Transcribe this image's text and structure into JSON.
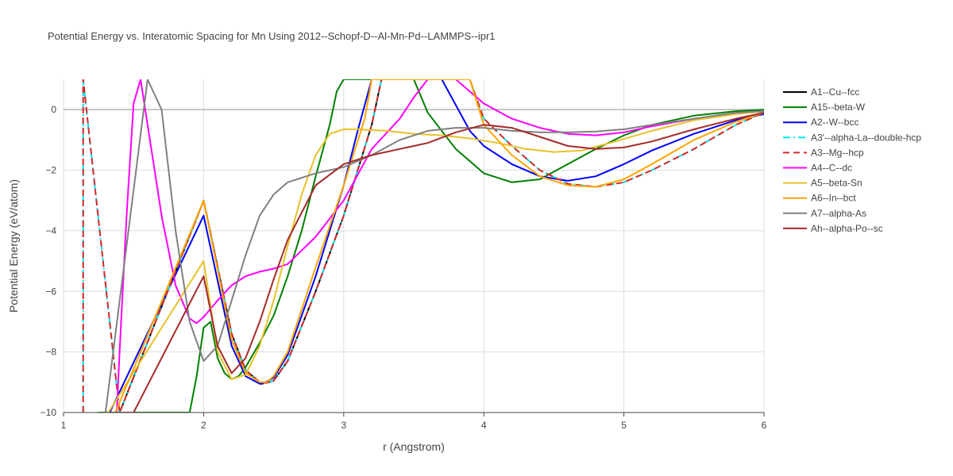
{
  "chart_data": {
    "type": "line",
    "title": "Potential Energy vs. Interatomic Spacing for Mn Using 2012--Schopf-D--Al-Mn-Pd--LAMMPS--ipr1",
    "xlabel": "r (Angstrom)",
    "ylabel": "Potential Energy (eV/atom)",
    "xlim": [
      1,
      6
    ],
    "ylim": [
      -10,
      1
    ],
    "xticks": [
      "1",
      "2",
      "3",
      "4",
      "5",
      "6"
    ],
    "yticks": [
      "0",
      "−2",
      "−4",
      "−6",
      "−8",
      "−10"
    ],
    "grid": true,
    "legend_position": "right",
    "series": [
      {
        "name": "A1--Cu--fcc",
        "color": "#000000",
        "dash": "solid",
        "x": [
          1.4,
          2.0,
          2.2,
          2.3,
          2.4,
          2.45,
          2.5,
          2.6,
          2.8,
          3.0,
          3.2,
          3.27
        ],
        "y": [
          -10,
          -3.0,
          -7.4,
          -8.6,
          -9.0,
          -9.02,
          -8.95,
          -8.3,
          -6.0,
          -3.5,
          -0.5,
          1
        ]
      },
      {
        "name": "A15--beta-W",
        "color": "#008000",
        "dash": "solid",
        "x": [
          1.245,
          1.29,
          1.34,
          1.4,
          1.5,
          1.6,
          1.7,
          1.8,
          1.9,
          1.95,
          2.0,
          2.05,
          2.1,
          2.15,
          2.2,
          2.25,
          2.3,
          2.35,
          2.4,
          2.5,
          2.6,
          2.7,
          2.8,
          2.9,
          2.95,
          3.0,
          3.5,
          3.6,
          3.8,
          4.0,
          4.2,
          4.4,
          4.6,
          4.8,
          5.0,
          5.2,
          5.5,
          5.8,
          6.0
        ],
        "y": [
          -10,
          -10,
          -10,
          -10,
          -10,
          -10,
          -10,
          -10,
          -10,
          -8.8,
          -7.2,
          -7.0,
          -8.2,
          -8.7,
          -8.9,
          -8.8,
          -8.5,
          -8.1,
          -7.7,
          -6.8,
          -5.5,
          -4.0,
          -2.2,
          -0.5,
          0.6,
          1,
          1,
          -0.1,
          -1.3,
          -2.1,
          -2.4,
          -2.3,
          -1.8,
          -1.3,
          -0.85,
          -0.5,
          -0.2,
          -0.05,
          0
        ]
      },
      {
        "name": "A2--W--bcc",
        "color": "#0000ff",
        "dash": "solid",
        "x": [
          1.33,
          2.0,
          2.2,
          2.3,
          2.4,
          2.42,
          2.5,
          2.6,
          2.8,
          3.0,
          3.1,
          3.2,
          3.5,
          3.7,
          3.9,
          4.0,
          4.2,
          4.4,
          4.6,
          4.8,
          5.0,
          5.2,
          5.5,
          5.8,
          6.0
        ],
        "y": [
          -10,
          -3.5,
          -7.8,
          -8.8,
          -9.05,
          -9.05,
          -8.85,
          -8.1,
          -5.5,
          -2.5,
          -0.7,
          1,
          1,
          1,
          -0.7,
          -1.2,
          -1.8,
          -2.2,
          -2.35,
          -2.2,
          -1.8,
          -1.35,
          -0.8,
          -0.35,
          -0.15
        ]
      },
      {
        "name": "A3'--alpha-La--double-hcp",
        "color": "#00e5ee",
        "dash": "dashdot",
        "x": [
          1.14,
          1.14,
          1.14,
          1.4,
          2.0,
          2.2,
          2.3,
          2.4,
          2.45,
          2.5,
          2.6,
          2.8,
          3.0,
          3.2,
          3.27,
          3.9,
          4.0,
          4.2,
          4.4,
          4.6,
          4.8,
          5.0,
          5.2,
          5.5,
          5.8,
          6.0
        ],
        "y": [
          -10,
          0,
          1,
          -10,
          -3.0,
          -7.4,
          -8.6,
          -9.0,
          -9.02,
          -8.95,
          -8.3,
          -6.0,
          -3.5,
          -0.5,
          1,
          1,
          -0.3,
          -1.2,
          -2.0,
          -2.45,
          -2.55,
          -2.4,
          -2.0,
          -1.3,
          -0.5,
          -0.1
        ]
      },
      {
        "name": "A3--Mg--hcp",
        "color": "#d62728",
        "dash": "dash",
        "x": [
          1.14,
          1.14,
          1.14,
          1.4,
          2.0,
          2.2,
          2.3,
          2.4,
          2.45,
          2.5,
          2.6,
          2.8,
          3.0,
          3.2,
          3.27,
          3.9,
          4.0,
          4.2,
          4.4,
          4.6,
          4.8,
          5.0,
          5.2,
          5.5,
          5.8,
          6.0
        ],
        "y": [
          -10,
          0,
          1,
          -10,
          -3.0,
          -7.4,
          -8.6,
          -9.0,
          -9.02,
          -8.95,
          -8.3,
          -6.0,
          -3.5,
          -0.5,
          1,
          1,
          -0.3,
          -1.2,
          -2.0,
          -2.45,
          -2.55,
          -2.4,
          -2.0,
          -1.3,
          -0.5,
          -0.1
        ]
      },
      {
        "name": "A4--C--dc",
        "color": "#ff00ff",
        "dash": "solid",
        "x": [
          1.38,
          1.4,
          1.45,
          1.5,
          1.55,
          1.7,
          1.8,
          1.9,
          1.95,
          2.0,
          2.1,
          2.2,
          2.3,
          2.4,
          2.5,
          2.6,
          2.8,
          3.0,
          3.2,
          3.4,
          3.5,
          3.6,
          3.8,
          4.0,
          4.2,
          4.4,
          4.6,
          4.8,
          5.0,
          5.2,
          5.5,
          5.8,
          6.0
        ],
        "y": [
          -10,
          -8.0,
          -3.5,
          0.2,
          1,
          -3.5,
          -5.8,
          -6.9,
          -7.05,
          -6.85,
          -6.3,
          -5.8,
          -5.5,
          -5.35,
          -5.25,
          -5.1,
          -4.2,
          -3.0,
          -1.3,
          -0.3,
          0.4,
          1,
          1,
          0.2,
          -0.3,
          -0.6,
          -0.8,
          -0.85,
          -0.75,
          -0.55,
          -0.3,
          -0.12,
          -0.05
        ]
      },
      {
        "name": "A5--beta-Sn",
        "color": "#e6c229",
        "dash": "solid",
        "x": [
          1.32,
          2.0,
          2.1,
          2.2,
          2.3,
          2.4,
          2.5,
          2.6,
          2.7,
          2.8,
          2.9,
          3.0,
          3.1,
          3.3,
          3.5,
          3.7,
          3.9,
          4.1,
          4.3,
          4.5,
          4.7,
          4.9,
          5.2,
          5.5,
          5.8,
          6.0
        ],
        "y": [
          -10,
          -5.0,
          -8.0,
          -8.9,
          -8.75,
          -7.8,
          -6.3,
          -4.5,
          -2.8,
          -1.5,
          -0.8,
          -0.65,
          -0.65,
          -0.7,
          -0.8,
          -0.85,
          -0.95,
          -1.1,
          -1.3,
          -1.4,
          -1.35,
          -1.1,
          -0.7,
          -0.35,
          -0.15,
          -0.05
        ]
      },
      {
        "name": "A6--In--bct",
        "color": "#ffa500",
        "dash": "solid",
        "x": [
          1.37,
          2.0,
          2.2,
          2.3,
          2.4,
          2.45,
          2.5,
          2.6,
          2.8,
          3.0,
          3.15,
          3.2,
          3.9,
          4.0,
          4.2,
          4.4,
          4.6,
          4.8,
          5.0,
          5.2,
          5.5,
          5.8,
          6.0
        ],
        "y": [
          -10,
          -3.0,
          -7.6,
          -8.7,
          -9.0,
          -9.0,
          -8.8,
          -8.0,
          -5.2,
          -2.5,
          -0.3,
          1,
          1,
          -0.5,
          -1.5,
          -2.2,
          -2.5,
          -2.55,
          -2.3,
          -1.8,
          -1.0,
          -0.4,
          -0.1
        ]
      },
      {
        "name": "A7--alpha-As",
        "color": "#808080",
        "dash": "solid",
        "x": [
          1.3,
          1.6,
          1.7,
          1.8,
          1.9,
          2.0,
          2.1,
          2.2,
          2.3,
          2.4,
          2.5,
          2.6,
          2.8,
          3.0,
          3.2,
          3.4,
          3.6,
          3.8,
          4.0,
          4.2,
          4.4,
          4.6,
          4.8,
          5.0,
          5.2,
          5.5,
          5.8,
          6.0
        ],
        "y": [
          -10,
          1,
          0,
          -4.0,
          -7.0,
          -8.3,
          -7.8,
          -6.3,
          -4.8,
          -3.5,
          -2.8,
          -2.4,
          -2.1,
          -1.9,
          -1.5,
          -1.0,
          -0.7,
          -0.6,
          -0.6,
          -0.7,
          -0.75,
          -0.75,
          -0.72,
          -0.65,
          -0.5,
          -0.3,
          -0.1,
          -0.05
        ]
      },
      {
        "name": "Ah--alpha-Po--sc",
        "color": "#a52a2a",
        "dash": "solid",
        "x": [
          1.36,
          1.45,
          1.5,
          2.0,
          2.1,
          2.2,
          2.3,
          2.4,
          2.5,
          2.6,
          2.8,
          3.0,
          3.2,
          3.4,
          3.6,
          3.8,
          4.0,
          4.2,
          4.4,
          4.6,
          4.8,
          5.0,
          5.2,
          5.5,
          5.8,
          6.0
        ],
        "y": [
          -10,
          -10,
          -10,
          -5.5,
          -7.8,
          -8.7,
          -8.2,
          -7.0,
          -5.6,
          -4.3,
          -2.5,
          -1.8,
          -1.5,
          -1.3,
          -1.1,
          -0.75,
          -0.5,
          -0.6,
          -0.9,
          -1.2,
          -1.3,
          -1.25,
          -1.05,
          -0.65,
          -0.3,
          -0.1
        ]
      }
    ]
  }
}
